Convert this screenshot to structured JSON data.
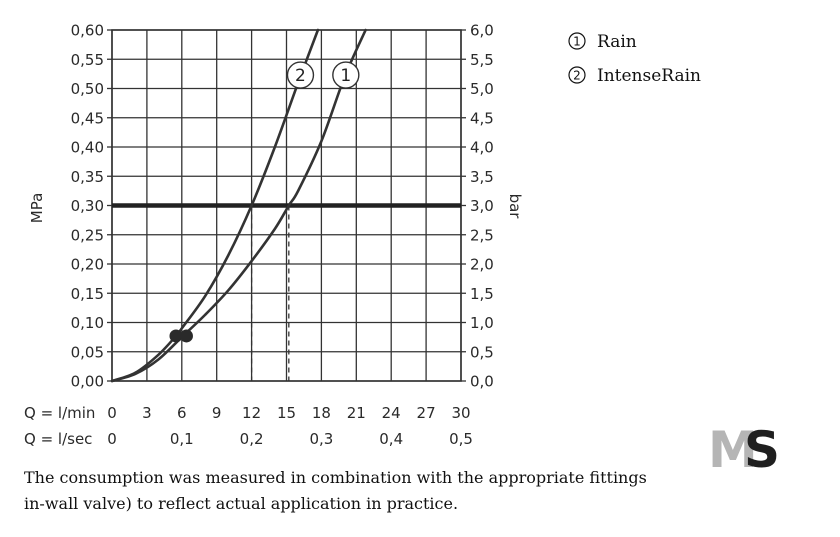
{
  "chart_data": {
    "type": "line",
    "y_left": {
      "label": "MPa",
      "range": [
        0,
        0.6
      ],
      "ticks": [
        "0,00",
        "0,05",
        "0,10",
        "0,15",
        "0,20",
        "0,25",
        "0,30",
        "0,35",
        "0,40",
        "0,45",
        "0,50",
        "0,55",
        "0,60"
      ]
    },
    "y_right": {
      "label": "bar",
      "range": [
        0,
        6
      ],
      "ticks": [
        "0,0",
        "0,5",
        "1,0",
        "1,5",
        "2,0",
        "2,5",
        "3,0",
        "3,5",
        "4,0",
        "4,5",
        "5,0",
        "5,5",
        "6,0"
      ]
    },
    "x_primary": {
      "label": "Q = l/min",
      "range": [
        0,
        30
      ],
      "ticks": [
        "0",
        "3",
        "6",
        "9",
        "12",
        "15",
        "18",
        "21",
        "24",
        "27",
        "30"
      ]
    },
    "x_secondary": {
      "label": "Q = l/sec",
      "ticks": [
        {
          "value": 0,
          "label": "0"
        },
        {
          "value": 0.1,
          "label": "0,1"
        },
        {
          "value": 0.2,
          "label": "0,2"
        },
        {
          "value": 0.3,
          "label": "0,3"
        },
        {
          "value": 0.4,
          "label": "0,4"
        },
        {
          "value": 0.5,
          "label": "0,5"
        }
      ]
    },
    "grid": true,
    "reference_line": {
      "y": 0.3
    },
    "drop_lines": [
      {
        "x": 12,
        "y": 0.3
      },
      {
        "x": 15.2,
        "y": 0.3
      }
    ],
    "series": [
      {
        "name": "Rain",
        "marker_label": "1",
        "x": [
          0,
          2,
          4,
          6,
          8,
          10,
          12,
          14,
          15.2,
          16,
          18,
          20,
          21.8
        ],
        "y": [
          0,
          0.012,
          0.037,
          0.075,
          0.113,
          0.155,
          0.205,
          0.26,
          0.3,
          0.325,
          0.41,
          0.52,
          0.6
        ]
      },
      {
        "name": "IntenseRain",
        "marker_label": "2",
        "x": [
          0,
          2,
          4,
          5.5,
          6,
          8,
          10,
          12,
          14,
          16,
          17.7
        ],
        "y": [
          0,
          0.014,
          0.045,
          0.077,
          0.09,
          0.145,
          0.215,
          0.3,
          0.4,
          0.51,
          0.6
        ]
      }
    ],
    "points": [
      {
        "x": 5.5,
        "y": 0.077
      },
      {
        "x": 6.4,
        "y": 0.077
      }
    ],
    "legend": {
      "position": "top-right",
      "items": [
        {
          "symbol": "1",
          "label": "Rain"
        },
        {
          "symbol": "2",
          "label": "IntenseRain"
        }
      ]
    },
    "colors": {
      "curve": "#333333",
      "grid": "#333333",
      "reference": "#222222",
      "point": "#2a2a2a"
    }
  },
  "caption": {
    "line1": "The consumption was measured in combination with the appropriate fittings",
    "line2": "in-wall valve) to reflect actual application in practice."
  },
  "logo": {
    "text": "MS",
    "colors": {
      "m": "#b5b5b5",
      "s": "#1f1f1f"
    }
  }
}
